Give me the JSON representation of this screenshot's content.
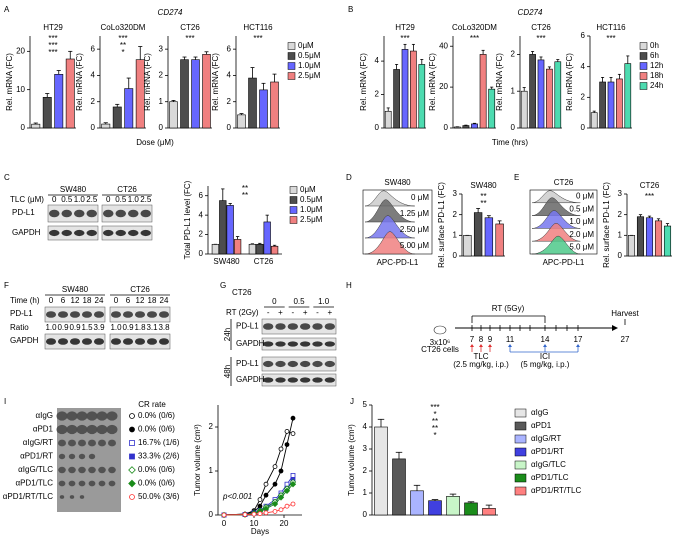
{
  "panels": {
    "A": {
      "label": "A",
      "gene": "CD274",
      "x_label": "Dose (μM)",
      "legend": [
        {
          "name": "0μM",
          "color": "#d9d9d9"
        },
        {
          "name": "0.5μM",
          "color": "#4d4d4d"
        },
        {
          "name": "1.0μM",
          "color": "#6666ff"
        },
        {
          "name": "2.5μM",
          "color": "#f08080"
        }
      ]
    },
    "B": {
      "label": "B",
      "gene": "CD274",
      "x_label": "Time (hrs)",
      "legend": [
        {
          "name": "0h",
          "color": "#d9d9d9"
        },
        {
          "name": "6h",
          "color": "#4d4d4d"
        },
        {
          "name": "12h",
          "color": "#6666ff"
        },
        {
          "name": "18h",
          "color": "#f08080"
        },
        {
          "name": "24h",
          "color": "#4ddbb0"
        }
      ]
    },
    "C": {
      "label": "C",
      "blot": {
        "cell_lines": [
          "SW480",
          "CT26"
        ],
        "dose_label": "TLC (μM)",
        "doses": [
          "0",
          "0.5",
          "1.0",
          "2.5",
          "0",
          "0.5",
          "1.0",
          "2.5"
        ],
        "rows": [
          "PD-L1",
          "GAPDH"
        ]
      },
      "legend": [
        {
          "name": "0μM",
          "color": "#d9d9d9"
        },
        {
          "name": "0.5μM",
          "color": "#4d4d4d"
        },
        {
          "name": "1.0μM",
          "color": "#6666ff"
        },
        {
          "name": "2.5μM",
          "color": "#f08080"
        }
      ]
    },
    "D": {
      "label": "D",
      "flow": {
        "title": "SW480",
        "labels": [
          "0 μM",
          "1.25 μM",
          "2.50 μM",
          "5.00 μM"
        ],
        "colors": [
          "#cccccc",
          "#666666",
          "#7777ee",
          "#f08080"
        ],
        "x_label": "APC-PD-L1"
      }
    },
    "E": {
      "label": "E",
      "flow": {
        "title": "CT26",
        "labels": [
          "0 μM",
          "0.5 μM",
          "1.0 μM",
          "2.0 μM",
          "5.0 μM"
        ],
        "colors": [
          "#cccccc",
          "#666666",
          "#7777ee",
          "#f08080",
          "#4dc98a"
        ],
        "x_label": "APC-PD-L1"
      }
    },
    "F": {
      "label": "F",
      "blot": {
        "time_label": "Time (h)",
        "cell_lines": [
          "SW480",
          "CT26"
        ],
        "times": [
          "0",
          "6",
          "12",
          "18",
          "24",
          "0",
          "6",
          "12",
          "18",
          "24"
        ],
        "rows": [
          "PD-L1",
          "GAPDH"
        ],
        "ratio_label": "Ratio",
        "ratios": [
          "1.0",
          "0.9",
          "0.9",
          "1.5",
          "3.9",
          "1.0",
          "0.9",
          "1.8",
          "3.1",
          "3.8"
        ]
      }
    },
    "G": {
      "label": "G",
      "blot": {
        "title": "CT26",
        "doses": [
          "0",
          "0.5",
          "1.0"
        ],
        "rt_label": "RT (2Gy)",
        "rt": [
          "-",
          "+",
          "-",
          "+",
          "-",
          "+"
        ],
        "timepoints": [
          "24h",
          "48h"
        ],
        "rows": [
          "PD-L1",
          "GAPDH"
        ]
      }
    },
    "H": {
      "label": "H",
      "schedule": {
        "rt_label": "RT (5Gy)",
        "harvest": "Harvest",
        "cells": "3x10⁶",
        "cells_line": "CT26 cells",
        "days": [
          "7",
          "8",
          "9",
          "11",
          "14",
          "17",
          "27"
        ],
        "tlc": "TLC",
        "tlc_dose": "(2.5 mg/kg, i.p.)",
        "ici": "ICI",
        "ici_dose": "(5 mg/kg, i.p.)"
      }
    },
    "I": {
      "label": "I"
    },
    "J": {
      "label": "J"
    }
  },
  "chart_data": [
    {
      "type": "bar",
      "title": "HT29",
      "y_label": "Rel. mRNA (FC)",
      "values": [
        1,
        8,
        14,
        18
      ],
      "errors": [
        0.3,
        1,
        1,
        2
      ],
      "colors": [
        "#d9d9d9",
        "#4d4d4d",
        "#6666ff",
        "#f08080"
      ],
      "ylim": [
        0,
        24
      ],
      "yticks": [
        0,
        10,
        20
      ],
      "annotations": [
        "***",
        "***",
        "***"
      ]
    },
    {
      "type": "bar",
      "title": "CoLo320DM",
      "y_label": "Rel. mRNA (FC)",
      "values": [
        0.3,
        1.6,
        3,
        5.2
      ],
      "errors": [
        0.1,
        0.2,
        0.8,
        1
      ],
      "colors": [
        "#d9d9d9",
        "#4d4d4d",
        "#6666ff",
        "#f08080"
      ],
      "ylim": [
        0,
        7
      ],
      "yticks": [
        0,
        2,
        4,
        6
      ],
      "annotations": [
        "***",
        "**",
        "*"
      ]
    },
    {
      "type": "bar",
      "title": "CT26",
      "y_label": "Rel. mRNA (FC)",
      "values": [
        1,
        2.6,
        2.6,
        2.8
      ],
      "errors": [
        0.05,
        0.1,
        0.1,
        0.1
      ],
      "colors": [
        "#d9d9d9",
        "#4d4d4d",
        "#6666ff",
        "#f08080"
      ],
      "ylim": [
        0,
        3.5
      ],
      "yticks": [
        0,
        1,
        2,
        3
      ],
      "annotations": [
        "***"
      ]
    },
    {
      "type": "bar",
      "title": "HCT116",
      "y_label": "Rel. mRNA (FC)",
      "values": [
        1,
        3.8,
        2.9,
        3.5
      ],
      "errors": [
        0.1,
        0.8,
        0.5,
        0.6
      ],
      "colors": [
        "#d9d9d9",
        "#4d4d4d",
        "#6666ff",
        "#f08080"
      ],
      "ylim": [
        0,
        7
      ],
      "yticks": [
        0,
        2,
        4,
        6
      ],
      "annotations": [
        "***"
      ]
    },
    {
      "type": "bar",
      "title": "HT29",
      "y_label": "Rel. mRNA (FC)",
      "values": [
        1,
        3.5,
        4.7,
        4.6,
        3.8
      ],
      "errors": [
        0.2,
        0.3,
        0.3,
        0.4,
        0.3
      ],
      "colors": [
        "#d9d9d9",
        "#4d4d4d",
        "#6666ff",
        "#f08080",
        "#4ddbb0"
      ],
      "ylim": [
        0,
        5.5
      ],
      "yticks": [
        0,
        2,
        4
      ],
      "annotations": [
        "***"
      ]
    },
    {
      "type": "bar",
      "title": "CoLo320DM",
      "y_label": "Rel. mRNA (FC)",
      "values": [
        0.5,
        1.2,
        2,
        36,
        19
      ],
      "errors": [
        0.1,
        0.2,
        0.3,
        2,
        1
      ],
      "colors": [
        "#d9d9d9",
        "#4d4d4d",
        "#6666ff",
        "#f08080",
        "#4ddbb0"
      ],
      "ylim": [
        0,
        45
      ],
      "yticks": [
        0,
        20,
        40
      ],
      "annotations": [
        "***"
      ]
    },
    {
      "type": "bar",
      "title": "CT26",
      "y_label": "Rel. mRNA (FC)",
      "values": [
        1,
        2,
        1.85,
        1.6,
        1.8
      ],
      "errors": [
        0.1,
        0.08,
        0.08,
        0.06,
        0.06
      ],
      "colors": [
        "#d9d9d9",
        "#4d4d4d",
        "#6666ff",
        "#f08080",
        "#4ddbb0"
      ],
      "ylim": [
        0,
        2.5
      ],
      "yticks": [
        0,
        1,
        2
      ],
      "annotations": [
        "***"
      ]
    },
    {
      "type": "bar",
      "title": "HCT116",
      "y_label": "Rel. mRNA (FC)",
      "values": [
        1,
        3,
        3,
        3.2,
        4.2
      ],
      "errors": [
        0.1,
        0.3,
        0.3,
        0.3,
        0.5
      ],
      "colors": [
        "#d9d9d9",
        "#4d4d4d",
        "#6666ff",
        "#f08080",
        "#4ddbb0"
      ],
      "ylim": [
        0,
        6
      ],
      "yticks": [
        0,
        2,
        4,
        6
      ],
      "annotations": [
        "***"
      ]
    },
    {
      "type": "bar",
      "y_label": "Total PD-L1 level (FC)",
      "categories": [
        "SW480",
        "CT26"
      ],
      "series": [
        {
          "name": "0μM",
          "color": "#d9d9d9",
          "values": [
            1,
            1
          ],
          "errors": [
            0,
            0.05
          ]
        },
        {
          "name": "0.5μM",
          "color": "#4d4d4d",
          "values": [
            5.5,
            1
          ],
          "errors": [
            1.2,
            0.1
          ]
        },
        {
          "name": "1.0μM",
          "color": "#6666ff",
          "values": [
            5,
            3.3
          ],
          "errors": [
            0.2,
            0.7
          ]
        },
        {
          "name": "2.5μM",
          "color": "#f08080",
          "values": [
            1.5,
            0.8
          ],
          "errors": [
            0.3,
            0.1
          ]
        }
      ],
      "ylim": [
        0,
        7
      ],
      "yticks": [
        0,
        2,
        4,
        6
      ],
      "annotations": [
        "**",
        "**"
      ]
    },
    {
      "type": "bar",
      "title": "SW480",
      "y_label": "Rel. surface PD-L1 (FC)",
      "values": [
        1,
        2.1,
        1.85,
        1.55
      ],
      "errors": [
        0,
        0.2,
        0.1,
        0.15
      ],
      "colors": [
        "#d9d9d9",
        "#4d4d4d",
        "#6666ff",
        "#f08080"
      ],
      "ylim": [
        0,
        3
      ],
      "yticks": [
        0,
        1,
        2,
        3
      ],
      "annotations": [
        "**",
        "**"
      ]
    },
    {
      "type": "bar",
      "title": "CT26",
      "y_label": "Rel. surface PD-L1 (FC)",
      "values": [
        1,
        1.9,
        1.85,
        1.7,
        1.45
      ],
      "errors": [
        0,
        0.1,
        0.08,
        0.1,
        0.12
      ],
      "colors": [
        "#d9d9d9",
        "#4d4d4d",
        "#6666ff",
        "#f08080",
        "#4ddbb0"
      ],
      "ylim": [
        0,
        3
      ],
      "yticks": [
        0,
        1,
        2,
        3
      ],
      "annotations": [
        "***"
      ]
    },
    {
      "type": "line",
      "y_label": "Tumor volume (cm³)",
      "x_label": "Days",
      "annotation": "p<0.001",
      "cr_title": "CR rate",
      "x": [
        0,
        7,
        10,
        12,
        14,
        17,
        19,
        21,
        23
      ],
      "xlim": [
        -2,
        26
      ],
      "xticks": [
        0,
        10,
        20
      ],
      "ylim": [
        0,
        2.5
      ],
      "yticks": [
        0,
        1,
        2
      ],
      "series": [
        {
          "name": "αIgG",
          "color": "#000000",
          "marker": "circle",
          "filled": false,
          "values": [
            0,
            0.02,
            0.1,
            0.35,
            0.7,
            1.1,
            1.5,
            1.9,
            1.85
          ]
        },
        {
          "name": "αPD1",
          "color": "#000000",
          "marker": "circle",
          "filled": true,
          "values": [
            0,
            0.02,
            0.08,
            0.2,
            0.45,
            0.7,
            1.0,
            1.6,
            2.2
          ]
        },
        {
          "name": "αIgG/RT",
          "color": "#3333cc",
          "marker": "square",
          "filled": false,
          "values": [
            0,
            0.01,
            0.05,
            0.1,
            0.2,
            0.35,
            0.5,
            0.7,
            0.9
          ]
        },
        {
          "name": "αPD1/RT",
          "color": "#3333cc",
          "marker": "square",
          "filled": true,
          "values": [
            0,
            0.01,
            0.04,
            0.08,
            0.15,
            0.3,
            0.45,
            0.6,
            0.8
          ]
        },
        {
          "name": "αIgG/TLC",
          "color": "#1a8c1a",
          "marker": "diamond",
          "filled": false,
          "values": [
            0,
            0.01,
            0.04,
            0.1,
            0.18,
            0.3,
            0.45,
            0.6,
            0.75
          ]
        },
        {
          "name": "αPD1/TLC",
          "color": "#1a8c1a",
          "marker": "diamond",
          "filled": true,
          "values": [
            0,
            0.01,
            0.03,
            0.08,
            0.14,
            0.25,
            0.4,
            0.55,
            0.7
          ]
        },
        {
          "name": "αPD1/RT/TLC",
          "color": "#ff3333",
          "marker": "circle",
          "filled": false,
          "values": [
            0,
            0.01,
            0.02,
            0.03,
            0.05,
            0.08,
            0.12,
            0.2,
            0.25
          ]
        }
      ],
      "cr_rates": [
        "0.0% (0/6)",
        "0.0% (0/6)",
        "16.7% (1/6)",
        "33.3% (2/6)",
        "0.0% (0/6)",
        "0.0% (0/6)",
        "50.0% (3/6)"
      ]
    },
    {
      "type": "bar",
      "y_label": "Tumor volume (cm³)",
      "categories": [
        "αIgG",
        "αPD1",
        "αIgG/RT",
        "αPD1/RT",
        "αIgG/TLC",
        "αPD1/TLC",
        "αPD1/RT/TLC"
      ],
      "values": [
        4.0,
        2.55,
        1.1,
        0.65,
        0.85,
        0.55,
        0.3
      ],
      "errors": [
        0.35,
        0.3,
        0.25,
        0.05,
        0.1,
        0.05,
        0.15
      ],
      "colors": [
        "#e6e6e6",
        "#595959",
        "#aab4ff",
        "#4040e0",
        "#c8f5c8",
        "#1a8c1a",
        "#ff8080"
      ],
      "ylim": [
        0,
        5
      ],
      "yticks": [
        0,
        1,
        2,
        3,
        4,
        5
      ],
      "annotations": [
        "***",
        "*",
        "**",
        "**",
        "*"
      ]
    }
  ]
}
